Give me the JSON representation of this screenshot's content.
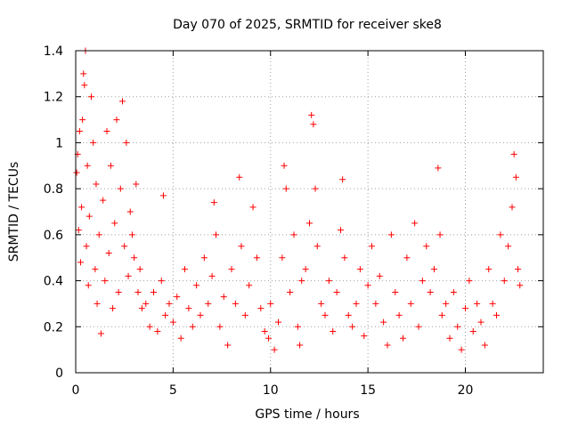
{
  "chart_data": {
    "type": "scatter",
    "title": "Day 070 of 2025, SRMTID for receiver ske8",
    "xlabel": "GPS time / hours",
    "ylabel": "SRMTID / TECUs",
    "xlim": [
      0,
      24
    ],
    "ylim": [
      0,
      1.4
    ],
    "xticks": [
      0,
      5,
      10,
      15,
      20
    ],
    "xtick_labels": [
      "0",
      "5",
      "10",
      "15",
      "20"
    ],
    "yticks": [
      0,
      0.2,
      0.4,
      0.6,
      0.8,
      1,
      1.2,
      1.4
    ],
    "ytick_labels": [
      "0",
      "0.2",
      "0.4",
      "0.6",
      "0.8",
      "1",
      "1.2",
      "1.4"
    ],
    "grid": true,
    "marker": "plus",
    "color": "#ff0000",
    "series": [
      {
        "name": "SRMTID",
        "points": [
          [
            0.05,
            0.87
          ],
          [
            0.1,
            0.95
          ],
          [
            0.15,
            0.62
          ],
          [
            0.2,
            1.05
          ],
          [
            0.25,
            0.48
          ],
          [
            0.3,
            0.72
          ],
          [
            0.35,
            1.1
          ],
          [
            0.4,
            1.3
          ],
          [
            0.45,
            1.25
          ],
          [
            0.5,
            1.4
          ],
          [
            0.55,
            0.55
          ],
          [
            0.6,
            0.9
          ],
          [
            0.65,
            0.38
          ],
          [
            0.7,
            0.68
          ],
          [
            0.8,
            1.2
          ],
          [
            0.9,
            1.0
          ],
          [
            1.0,
            0.45
          ],
          [
            1.05,
            0.82
          ],
          [
            1.1,
            0.3
          ],
          [
            1.2,
            0.6
          ],
          [
            1.3,
            0.17
          ],
          [
            1.4,
            0.75
          ],
          [
            1.5,
            0.4
          ],
          [
            1.6,
            1.05
          ],
          [
            1.7,
            0.52
          ],
          [
            1.8,
            0.9
          ],
          [
            1.9,
            0.28
          ],
          [
            2.0,
            0.65
          ],
          [
            2.1,
            1.1
          ],
          [
            2.2,
            0.35
          ],
          [
            2.3,
            0.8
          ],
          [
            2.4,
            1.18
          ],
          [
            2.5,
            0.55
          ],
          [
            2.6,
            1.0
          ],
          [
            2.7,
            0.42
          ],
          [
            2.8,
            0.7
          ],
          [
            2.9,
            0.6
          ],
          [
            3.0,
            0.5
          ],
          [
            3.1,
            0.82
          ],
          [
            3.2,
            0.35
          ],
          [
            3.3,
            0.45
          ],
          [
            3.4,
            0.28
          ],
          [
            3.6,
            0.3
          ],
          [
            3.8,
            0.2
          ],
          [
            4.0,
            0.35
          ],
          [
            4.2,
            0.18
          ],
          [
            4.4,
            0.4
          ],
          [
            4.5,
            0.77
          ],
          [
            4.6,
            0.25
          ],
          [
            4.8,
            0.3
          ],
          [
            5.0,
            0.22
          ],
          [
            5.2,
            0.33
          ],
          [
            5.4,
            0.15
          ],
          [
            5.6,
            0.45
          ],
          [
            5.8,
            0.28
          ],
          [
            6.0,
            0.2
          ],
          [
            6.2,
            0.38
          ],
          [
            6.4,
            0.25
          ],
          [
            6.6,
            0.5
          ],
          [
            6.8,
            0.3
          ],
          [
            7.0,
            0.42
          ],
          [
            7.1,
            0.74
          ],
          [
            7.2,
            0.6
          ],
          [
            7.4,
            0.2
          ],
          [
            7.6,
            0.33
          ],
          [
            7.8,
            0.12
          ],
          [
            8.0,
            0.45
          ],
          [
            8.2,
            0.3
          ],
          [
            8.4,
            0.85
          ],
          [
            8.5,
            0.55
          ],
          [
            8.7,
            0.25
          ],
          [
            8.9,
            0.38
          ],
          [
            9.1,
            0.72
          ],
          [
            9.3,
            0.5
          ],
          [
            9.5,
            0.28
          ],
          [
            9.7,
            0.18
          ],
          [
            9.9,
            0.15
          ],
          [
            10.0,
            0.3
          ],
          [
            10.2,
            0.1
          ],
          [
            10.4,
            0.22
          ],
          [
            10.6,
            0.5
          ],
          [
            10.7,
            0.9
          ],
          [
            10.8,
            0.8
          ],
          [
            11.0,
            0.35
          ],
          [
            11.2,
            0.6
          ],
          [
            11.4,
            0.2
          ],
          [
            11.5,
            0.12
          ],
          [
            11.6,
            0.4
          ],
          [
            11.8,
            0.45
          ],
          [
            12.0,
            0.65
          ],
          [
            12.1,
            1.12
          ],
          [
            12.2,
            1.08
          ],
          [
            12.3,
            0.8
          ],
          [
            12.4,
            0.55
          ],
          [
            12.6,
            0.3
          ],
          [
            12.8,
            0.25
          ],
          [
            13.0,
            0.4
          ],
          [
            13.2,
            0.18
          ],
          [
            13.4,
            0.35
          ],
          [
            13.6,
            0.62
          ],
          [
            13.7,
            0.84
          ],
          [
            13.8,
            0.5
          ],
          [
            14.0,
            0.25
          ],
          [
            14.2,
            0.2
          ],
          [
            14.4,
            0.3
          ],
          [
            14.6,
            0.45
          ],
          [
            14.8,
            0.16
          ],
          [
            15.0,
            0.38
          ],
          [
            15.2,
            0.55
          ],
          [
            15.4,
            0.3
          ],
          [
            15.6,
            0.42
          ],
          [
            15.8,
            0.22
          ],
          [
            16.0,
            0.12
          ],
          [
            16.2,
            0.6
          ],
          [
            16.4,
            0.35
          ],
          [
            16.6,
            0.25
          ],
          [
            16.8,
            0.15
          ],
          [
            17.0,
            0.5
          ],
          [
            17.2,
            0.3
          ],
          [
            17.4,
            0.65
          ],
          [
            17.6,
            0.2
          ],
          [
            17.8,
            0.4
          ],
          [
            18.0,
            0.55
          ],
          [
            18.2,
            0.35
          ],
          [
            18.4,
            0.45
          ],
          [
            18.6,
            0.89
          ],
          [
            18.7,
            0.6
          ],
          [
            18.8,
            0.25
          ],
          [
            19.0,
            0.3
          ],
          [
            19.2,
            0.15
          ],
          [
            19.4,
            0.35
          ],
          [
            19.6,
            0.2
          ],
          [
            19.8,
            0.1
          ],
          [
            20.0,
            0.28
          ],
          [
            20.2,
            0.4
          ],
          [
            20.4,
            0.18
          ],
          [
            20.6,
            0.3
          ],
          [
            20.8,
            0.22
          ],
          [
            21.0,
            0.12
          ],
          [
            21.2,
            0.45
          ],
          [
            21.4,
            0.3
          ],
          [
            21.6,
            0.25
          ],
          [
            21.8,
            0.6
          ],
          [
            22.0,
            0.4
          ],
          [
            22.2,
            0.55
          ],
          [
            22.4,
            0.72
          ],
          [
            22.5,
            0.95
          ],
          [
            22.6,
            0.85
          ],
          [
            22.7,
            0.45
          ],
          [
            22.8,
            0.38
          ]
        ]
      }
    ]
  }
}
